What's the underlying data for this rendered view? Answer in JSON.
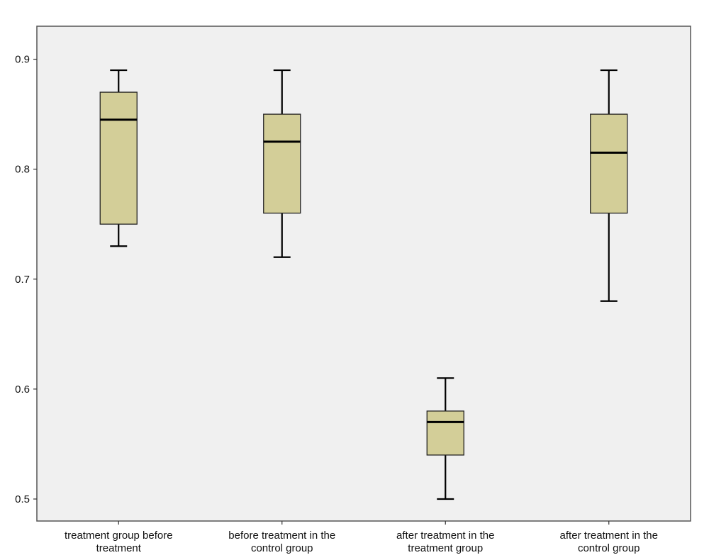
{
  "chart_data": {
    "type": "boxplot",
    "title": "",
    "xlabel": "",
    "ylabel": "",
    "ylim": [
      0.48,
      0.93
    ],
    "yticks": [
      "0.5",
      "0.6",
      "0.7",
      "0.8",
      "0.9"
    ],
    "grid": false,
    "legend": "none",
    "colors": {
      "plot_background": "#f0f0f0",
      "box_fill": "#d3ce98",
      "line": "#000000"
    },
    "categories": [
      {
        "label_lines": [
          "treatment group before",
          "treatment"
        ],
        "min": 0.73,
        "q1": 0.75,
        "median": 0.845,
        "q3": 0.87,
        "max": 0.89
      },
      {
        "label_lines": [
          "before treatment in the",
          "control group"
        ],
        "min": 0.72,
        "q1": 0.76,
        "median": 0.825,
        "q3": 0.85,
        "max": 0.89
      },
      {
        "label_lines": [
          "after treatment in the",
          "treatment group"
        ],
        "min": 0.5,
        "q1": 0.54,
        "median": 0.57,
        "q3": 0.58,
        "max": 0.61
      },
      {
        "label_lines": [
          "after treatment in the",
          "control group"
        ],
        "min": 0.68,
        "q1": 0.76,
        "median": 0.815,
        "q3": 0.85,
        "max": 0.89
      }
    ]
  }
}
